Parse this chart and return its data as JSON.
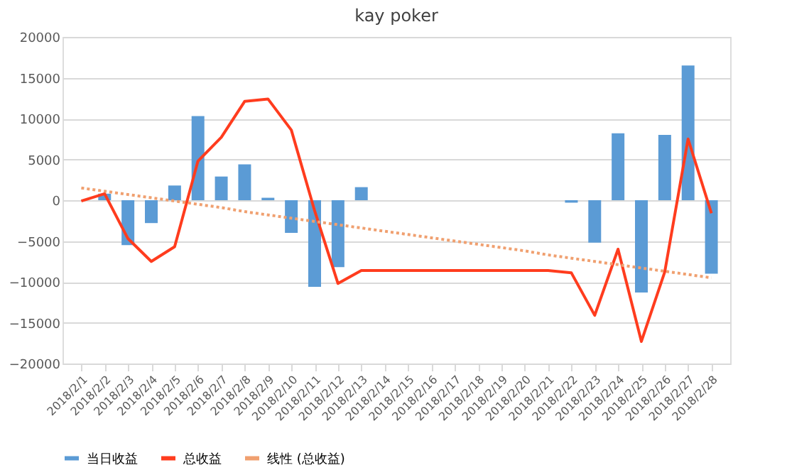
{
  "chart_data": {
    "type": "bar",
    "title": "kay poker",
    "categories": [
      "2018/2/1",
      "2018/2/2",
      "2018/2/3",
      "2018/2/4",
      "2018/2/5",
      "2018/2/6",
      "2018/2/7",
      "2018/2/8",
      "2018/2/9",
      "2018/2/10",
      "2018/2/11",
      "2018/2/12",
      "2018/2/13",
      "2018/2/14",
      "2018/2/15",
      "2018/2/16",
      "2018/2/17",
      "2018/2/18",
      "2018/2/19",
      "2018/2/20",
      "2018/2/21",
      "2018/2/22",
      "2018/2/23",
      "2018/2/24",
      "2018/2/25",
      "2018/2/26",
      "2018/2/27",
      "2018/2/28"
    ],
    "series": [
      {
        "name": "当日收益",
        "color": "#5b9bd5",
        "values": [
          0,
          800,
          -5500,
          -2800,
          1800,
          10300,
          2900,
          4400,
          300,
          -4000,
          -10600,
          -8200,
          1600,
          0,
          0,
          0,
          0,
          0,
          0,
          0,
          0,
          -300,
          -5200,
          8200,
          -11300,
          8000,
          16500,
          -9000
        ]
      },
      {
        "name": "总收益",
        "type": "line",
        "color": "#ff3c1e",
        "line_style": "solid",
        "values": [
          -100,
          800,
          -4700,
          -7500,
          -5700,
          4800,
          7700,
          12100,
          12400,
          8600,
          -1300,
          -10200,
          -8600,
          -8600,
          -8600,
          -8600,
          -8600,
          -8600,
          -8600,
          -8600,
          -8600,
          -8900,
          -14100,
          -6000,
          -17300,
          -8800,
          7500,
          -1600
        ]
      },
      {
        "name": "线性 (总收益)",
        "type": "line",
        "color": "#f0a070",
        "line_style": "dotted",
        "values": [
          1500,
          1100,
          700,
          300,
          -100,
          -500,
          -900,
          -1400,
          -1800,
          -2200,
          -2600,
          -3000,
          -3400,
          -3800,
          -4200,
          -4600,
          -5000,
          -5400,
          -5800,
          -6200,
          -6700,
          -7100,
          -7500,
          -7900,
          -8300,
          -8700,
          -9100,
          -9500
        ]
      }
    ],
    "ylim": [
      -20000,
      20000
    ],
    "yticks": [
      -20000,
      -15000,
      -10000,
      -5000,
      0,
      5000,
      10000,
      15000,
      20000
    ],
    "grid": "y",
    "legend": "bottom"
  }
}
